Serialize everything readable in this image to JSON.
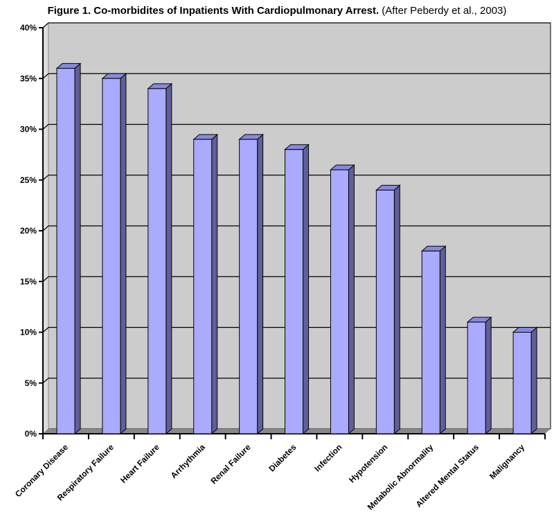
{
  "chart_data": {
    "type": "bar",
    "title": "Figure 1. Co-morbidites of Inpatients With Cardiopulmonary Arrest.",
    "subtitle": "(After Peberdy et al., 2003)",
    "categories": [
      "Coronary Disease",
      "Respiratory Failure",
      "Heart Failure",
      "Arrhythmia",
      "Renal Failure",
      "Diabetes",
      "Infection",
      "Hypotension",
      "Metabolic Abnormality",
      "Altered Mental Status",
      "Malignancy"
    ],
    "values": [
      36,
      35,
      34,
      29,
      29,
      28,
      26,
      24,
      18,
      11,
      10
    ],
    "xlabel": "",
    "ylabel": "",
    "ylim": [
      0,
      40
    ],
    "yticks": [
      "0%",
      "5%",
      "10%",
      "15%",
      "20%",
      "25%",
      "30%",
      "35%",
      "40%"
    ],
    "grid": true,
    "colors": {
      "bar_front": "#aaaaff",
      "bar_side": "#5f5f99",
      "bar_top": "#8888dd",
      "wall": "#cccccc",
      "floor": "#888888"
    }
  }
}
